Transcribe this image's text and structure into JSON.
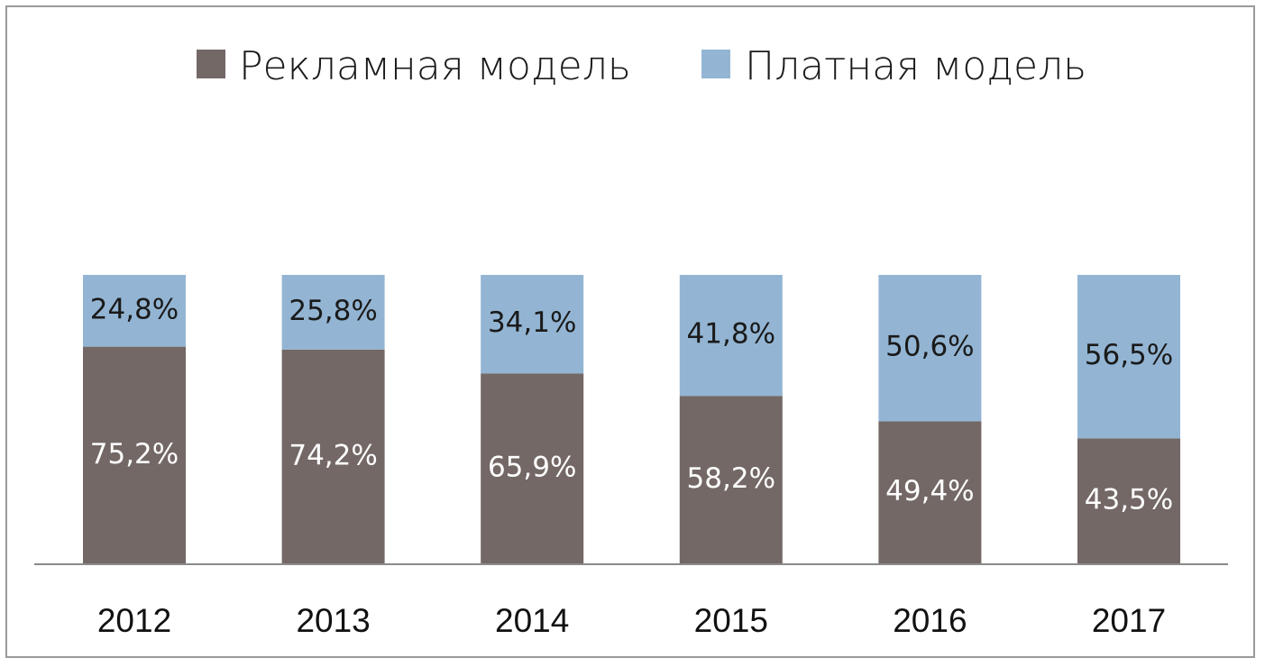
{
  "chart_data": {
    "type": "bar",
    "stacked": true,
    "categories": [
      "2012",
      "2013",
      "2014",
      "2015",
      "2016",
      "2017"
    ],
    "series": [
      {
        "name": "Рекламная модель",
        "color": "#736866",
        "values": [
          75.2,
          74.2,
          65.9,
          58.2,
          49.4,
          43.5
        ],
        "labels": [
          "75,2%",
          "74,2%",
          "65,9%",
          "58,2%",
          "49,4%",
          "43,5%"
        ]
      },
      {
        "name": "Платная модель",
        "color": "#93b5d3",
        "values": [
          24.8,
          25.8,
          34.1,
          41.8,
          50.6,
          56.5
        ],
        "labels": [
          "24,8%",
          "25,8%",
          "34,1%",
          "41,8%",
          "50,6%",
          "56,5%"
        ]
      }
    ],
    "title": "",
    "xlabel": "",
    "ylabel": "",
    "ylim": [
      0,
      100
    ],
    "grid": false,
    "legend_position": "top"
  }
}
